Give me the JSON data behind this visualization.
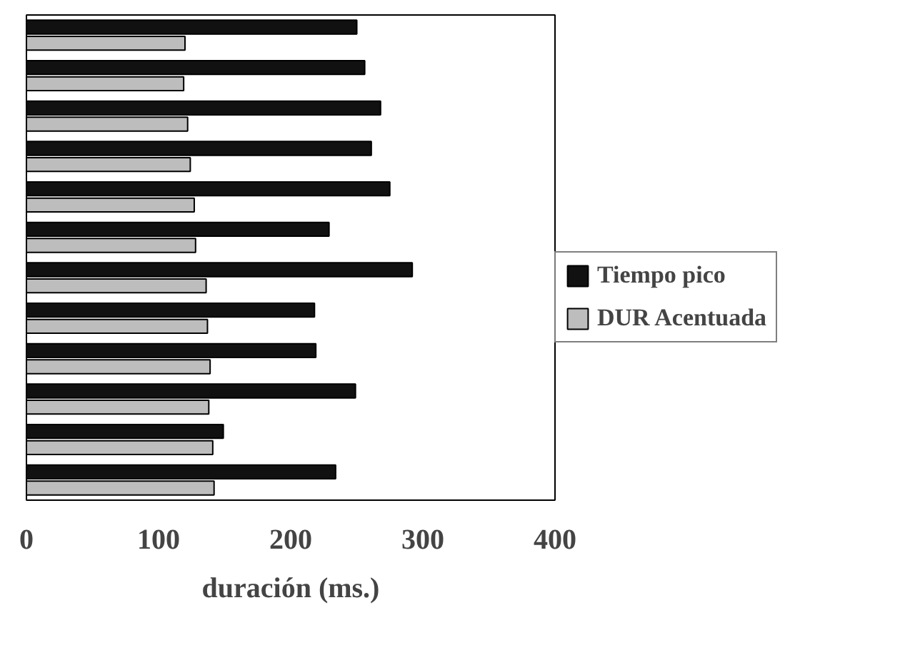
{
  "chart_data": {
    "type": "bar",
    "orientation": "horizontal",
    "xlabel": "duración (ms.)",
    "categories": [
      null,
      null,
      null,
      null,
      null,
      null,
      null,
      null,
      null,
      null,
      null,
      null
    ],
    "series": [
      {
        "name": "Tiempo pico",
        "color": "#111111",
        "values": [
          250,
          256,
          268,
          261,
          275,
          229,
          292,
          218,
          219,
          249,
          149,
          234
        ]
      },
      {
        "name": "DUR Acentuada",
        "color": "#bdbdbd",
        "values": [
          120,
          119,
          122,
          124,
          127,
          128,
          136,
          137,
          139,
          138,
          141,
          142
        ]
      }
    ],
    "xlim": [
      0,
      400
    ],
    "xticks": [
      0,
      100,
      200,
      300,
      400
    ],
    "grid": false,
    "legend": "right",
    "tick_labels": "x"
  }
}
